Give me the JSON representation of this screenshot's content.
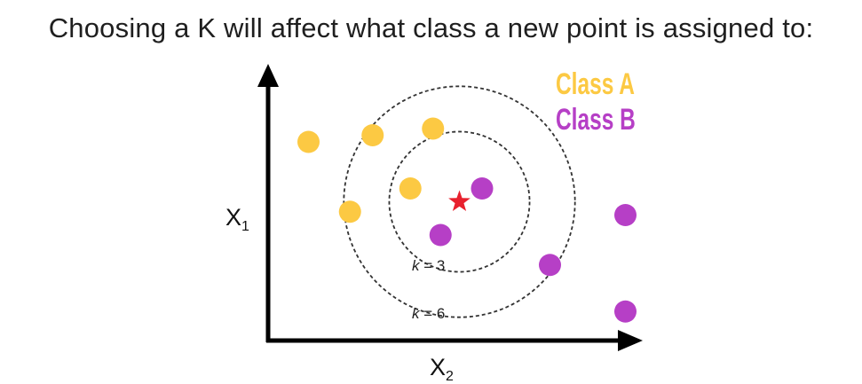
{
  "title": "Choosing a K will affect what class a new point is assigned to:",
  "legend": {
    "class_a": "Class A",
    "class_b": "Class B"
  },
  "colors": {
    "class_a": "#FCC943",
    "class_b": "#B63FC6",
    "query": "#E8212E",
    "axis": "#000000"
  },
  "axes": {
    "y_label_main": "X",
    "y_label_sub": "1",
    "x_label_main": "X",
    "x_label_sub": "2"
  },
  "neighborhoods": {
    "k3_var": "k",
    "k3_value": " = 3",
    "k6_var": "k",
    "k6_value": " = 6"
  },
  "chart_data": {
    "type": "scatter",
    "title": "Choosing a K will affect what class a new point is assigned to:",
    "xlabel": "X2",
    "ylabel": "X1",
    "query_point": {
      "x": 4.6,
      "y": 4.2,
      "label": "new point"
    },
    "series": [
      {
        "name": "Class A",
        "points": [
          {
            "x": 0.6,
            "y": 6.0
          },
          {
            "x": 2.3,
            "y": 6.2
          },
          {
            "x": 3.9,
            "y": 6.4
          },
          {
            "x": 3.3,
            "y": 4.6
          },
          {
            "x": 1.7,
            "y": 3.9
          }
        ]
      },
      {
        "name": "Class B",
        "points": [
          {
            "x": 5.2,
            "y": 4.6
          },
          {
            "x": 4.1,
            "y": 3.2
          },
          {
            "x": 7.0,
            "y": 2.3
          },
          {
            "x": 9.0,
            "y": 3.8
          },
          {
            "x": 9.0,
            "y": 0.9
          }
        ]
      }
    ],
    "circles": [
      {
        "label": "k = 3",
        "radius": 1.7
      },
      {
        "label": "k = 6",
        "radius": 2.8
      }
    ]
  }
}
